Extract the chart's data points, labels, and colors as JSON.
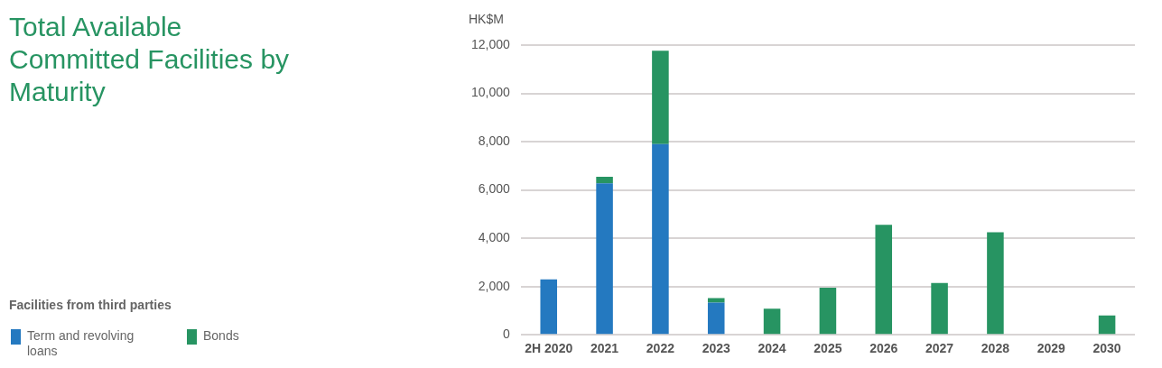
{
  "chart_data": {
    "type": "bar",
    "title": "Total Available Committed Facilities by Maturity",
    "ylabel": "HK$M",
    "legend_title": "Facilities from third parties",
    "categories": [
      "2H 2020",
      "2021",
      "2022",
      "2023",
      "2024",
      "2025",
      "2026",
      "2027",
      "2028",
      "2029",
      "2030"
    ],
    "series": [
      {
        "name": "Term and revolving loans",
        "color": "#2479c0",
        "values": [
          2300,
          6270,
          7900,
          1330,
          0,
          0,
          0,
          0,
          0,
          0,
          0
        ]
      },
      {
        "name": "Bonds",
        "color": "#279462",
        "values": [
          0,
          280,
          3870,
          190,
          1080,
          1950,
          4560,
          2150,
          4250,
          0,
          800
        ]
      }
    ],
    "stacked": true,
    "ylim": [
      0,
      12000
    ],
    "yticks": [
      0,
      {
        "value": 2000,
        "label": "2,000"
      },
      {
        "value": 4000,
        "label": "4,000"
      },
      {
        "value": 6000,
        "label": "6,000"
      },
      {
        "value": 8000,
        "label": "8,000"
      },
      {
        "value": 10000,
        "label": "10,000"
      },
      {
        "value": 12000,
        "label": "12,000"
      }
    ],
    "grid": "y",
    "legend": "bottom left"
  }
}
